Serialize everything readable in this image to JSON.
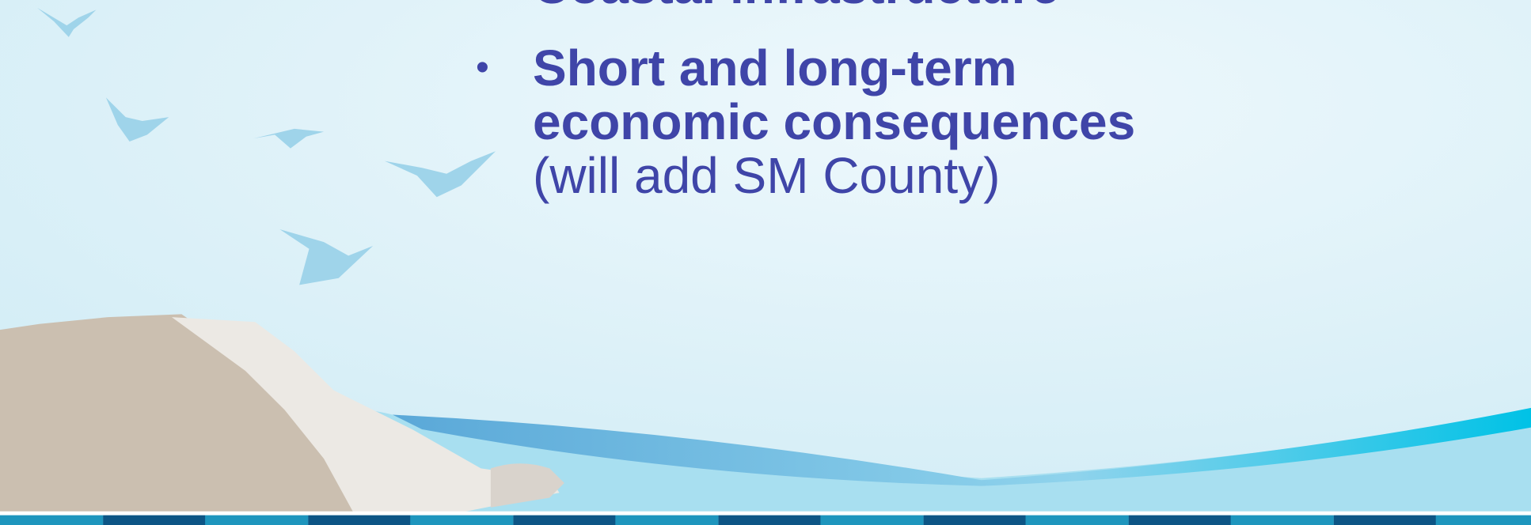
{
  "slide": {
    "bullets": [
      {
        "title": "Coastal infrastructure"
      },
      {
        "title": "Short and long-term economic consequences",
        "note": "(will add SM County)"
      }
    ]
  }
}
